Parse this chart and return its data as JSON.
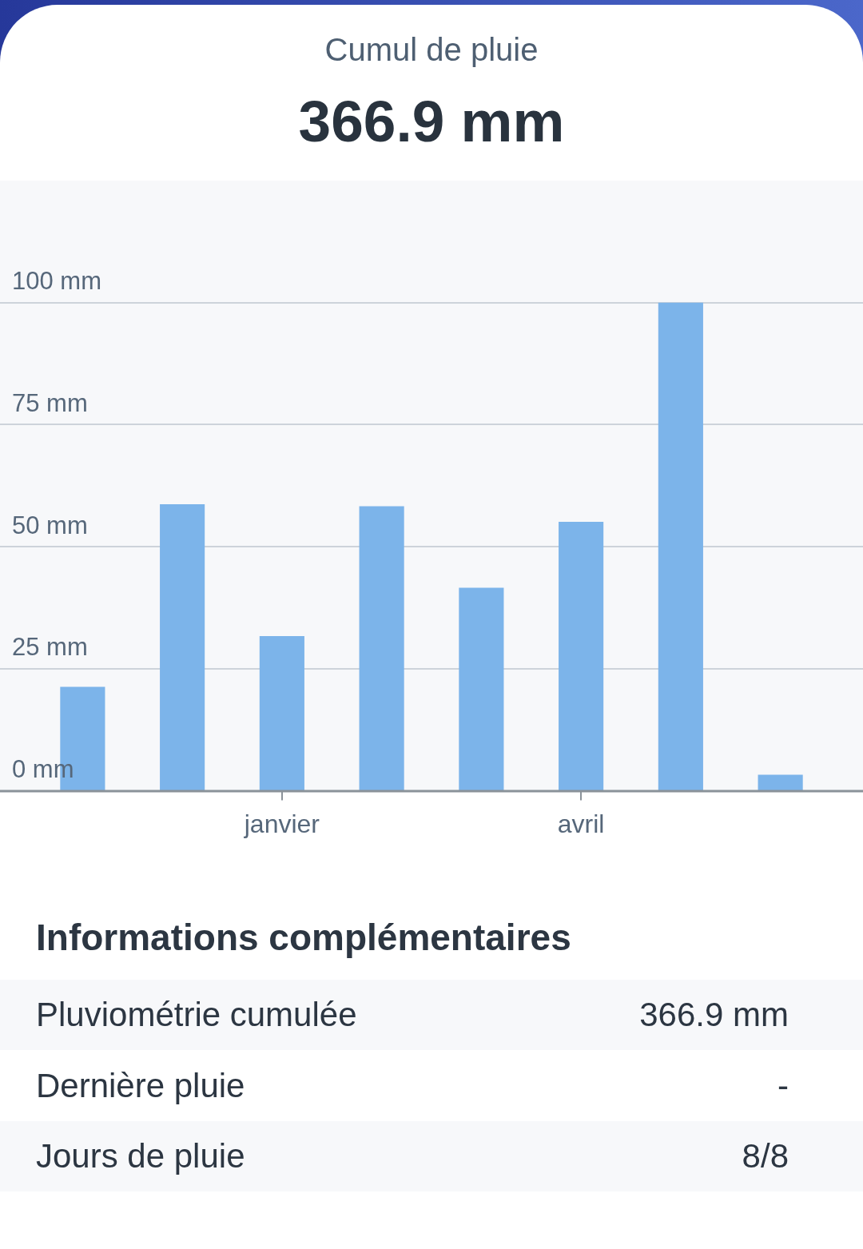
{
  "chart_data": [
    {
      "type": "bar",
      "title": "Cumul de pluie",
      "subtitle": "366.9 mm",
      "categories": [
        null,
        null,
        "janvier",
        null,
        null,
        "avril",
        null,
        null
      ],
      "values": [
        21.3,
        58.7,
        31.7,
        58.3,
        41.6,
        55.1,
        100,
        3.3
      ],
      "color": "#7cb4ea",
      "ylim": [
        0,
        125
      ],
      "yticks": [
        {
          "value": 0,
          "label": "0 mm"
        },
        {
          "value": 25,
          "label": "25 mm"
        },
        {
          "value": 50,
          "label": "50 mm"
        },
        {
          "value": 75,
          "label": "75 mm"
        },
        {
          "value": 100,
          "label": "100 mm"
        }
      ],
      "grid": "y"
    },
    {
      "type": "other",
      "title": "Informations complémentaires",
      "annotations": [
        "Pluviométrie cumulée",
        "366.9 mm",
        "Dernière pluie",
        "-",
        "Jours de pluie",
        "8/8"
      ]
    }
  ]
}
